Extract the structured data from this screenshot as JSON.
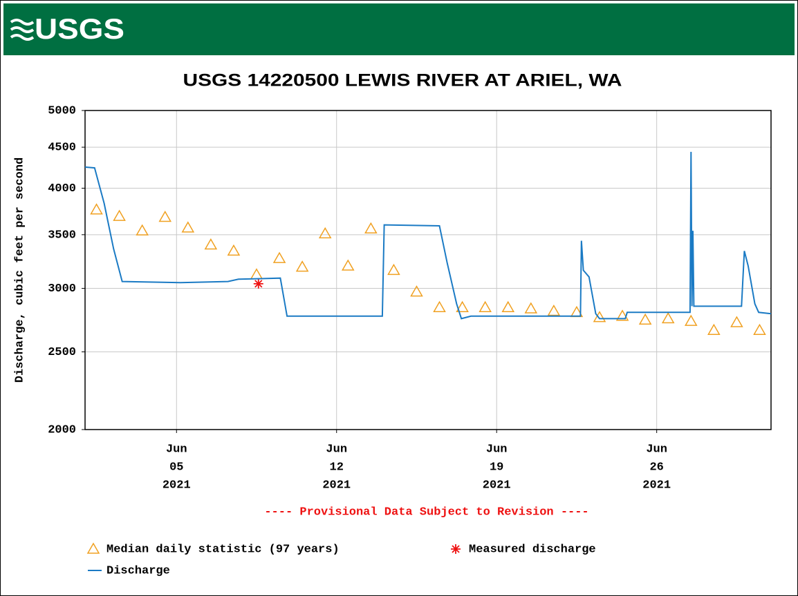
{
  "header": {
    "logo": "USGS"
  },
  "chart_data": {
    "type": "line",
    "title": "USGS 14220500 LEWIS RIVER AT ARIEL, WA",
    "y_label": "Discharge, cubic feet per second",
    "annotation": "---- Provisional Data Subject to Revision ----",
    "ylog": true,
    "grid": true,
    "legend": "bottom",
    "ylim": [
      2000,
      5000
    ],
    "yticks": [
      2000,
      2500,
      3000,
      3500,
      4000,
      4500,
      5000
    ],
    "xlim": [
      "2021-06-01T00:00",
      "2021-07-01T00:00"
    ],
    "xticks": [
      {
        "value": "2021-06-05",
        "label": [
          "Jun",
          "05",
          "2021"
        ]
      },
      {
        "value": "2021-06-12",
        "label": [
          "Jun",
          "12",
          "2021"
        ]
      },
      {
        "value": "2021-06-19",
        "label": [
          "Jun",
          "19",
          "2021"
        ]
      },
      {
        "value": "2021-06-26",
        "label": [
          "Jun",
          "26",
          "2021"
        ]
      }
    ],
    "series": [
      {
        "name": "Median daily statistic (97 years)",
        "color": "#f0a020",
        "marker": "triangle",
        "daily": true,
        "x": [
          "2021-06-01",
          "2021-06-02",
          "2021-06-03",
          "2021-06-04",
          "2021-06-05",
          "2021-06-06",
          "2021-06-07",
          "2021-06-08",
          "2021-06-09",
          "2021-06-10",
          "2021-06-11",
          "2021-06-12",
          "2021-06-13",
          "2021-06-14",
          "2021-06-15",
          "2021-06-16",
          "2021-06-17",
          "2021-06-18",
          "2021-06-19",
          "2021-06-20",
          "2021-06-21",
          "2021-06-22",
          "2021-06-23",
          "2021-06-24",
          "2021-06-25",
          "2021-06-26",
          "2021-06-27",
          "2021-06-28",
          "2021-06-29",
          "2021-06-30"
        ],
        "values": [
          3760,
          3690,
          3540,
          3680,
          3570,
          3400,
          3340,
          3120,
          3270,
          3190,
          3510,
          3200,
          3560,
          3160,
          2970,
          2840,
          2840,
          2840,
          2840,
          2830,
          2810,
          2800,
          2760,
          2770,
          2740,
          2750,
          2730,
          2660,
          2720,
          2660
        ]
      },
      {
        "name": "Measured discharge",
        "color": "#ee1111",
        "marker": "star",
        "x": [
          "2021-06-08T14:00"
        ],
        "values": [
          3040
        ]
      },
      {
        "name": "Discharge",
        "color": "#1a7ac4",
        "x": [
          "2021-06-01T00:00",
          "2021-06-01T10:00",
          "2021-06-01T20:00",
          "2021-06-02T06:00",
          "2021-06-02T15:00",
          "2021-06-05T04:00",
          "2021-06-07T06:00",
          "2021-06-07T17:00",
          "2021-06-09T13:00",
          "2021-06-09T20:00",
          "2021-06-14T00:00",
          "2021-06-14T02:00",
          "2021-06-16T12:00",
          "2021-06-16T20:00",
          "2021-06-17T06:00",
          "2021-06-17T11:00",
          "2021-06-17T21:00",
          "2021-06-22T16:00",
          "2021-06-22T17:00",
          "2021-06-22T19:00",
          "2021-06-23T01:00",
          "2021-06-23T08:00",
          "2021-06-23T12:00",
          "2021-06-24T15:00",
          "2021-06-24T17:00",
          "2021-06-27T11:00",
          "2021-06-27T12:00",
          "2021-06-27T13:00",
          "2021-06-27T14:00",
          "2021-06-27T15:00",
          "2021-06-29T17:00",
          "2021-06-29T20:00",
          "2021-06-30T00:00",
          "2021-06-30T07:00",
          "2021-06-30T11:00",
          "2021-07-01T00:00"
        ],
        "values": [
          4250,
          4240,
          3830,
          3360,
          3060,
          3050,
          3060,
          3080,
          3090,
          2770,
          2770,
          3600,
          3590,
          3230,
          2870,
          2750,
          2770,
          2770,
          3440,
          3160,
          3100,
          2790,
          2750,
          2750,
          2800,
          2800,
          4440,
          2850,
          3540,
          2850,
          2850,
          3340,
          3200,
          2870,
          2800,
          2790
        ]
      }
    ]
  }
}
